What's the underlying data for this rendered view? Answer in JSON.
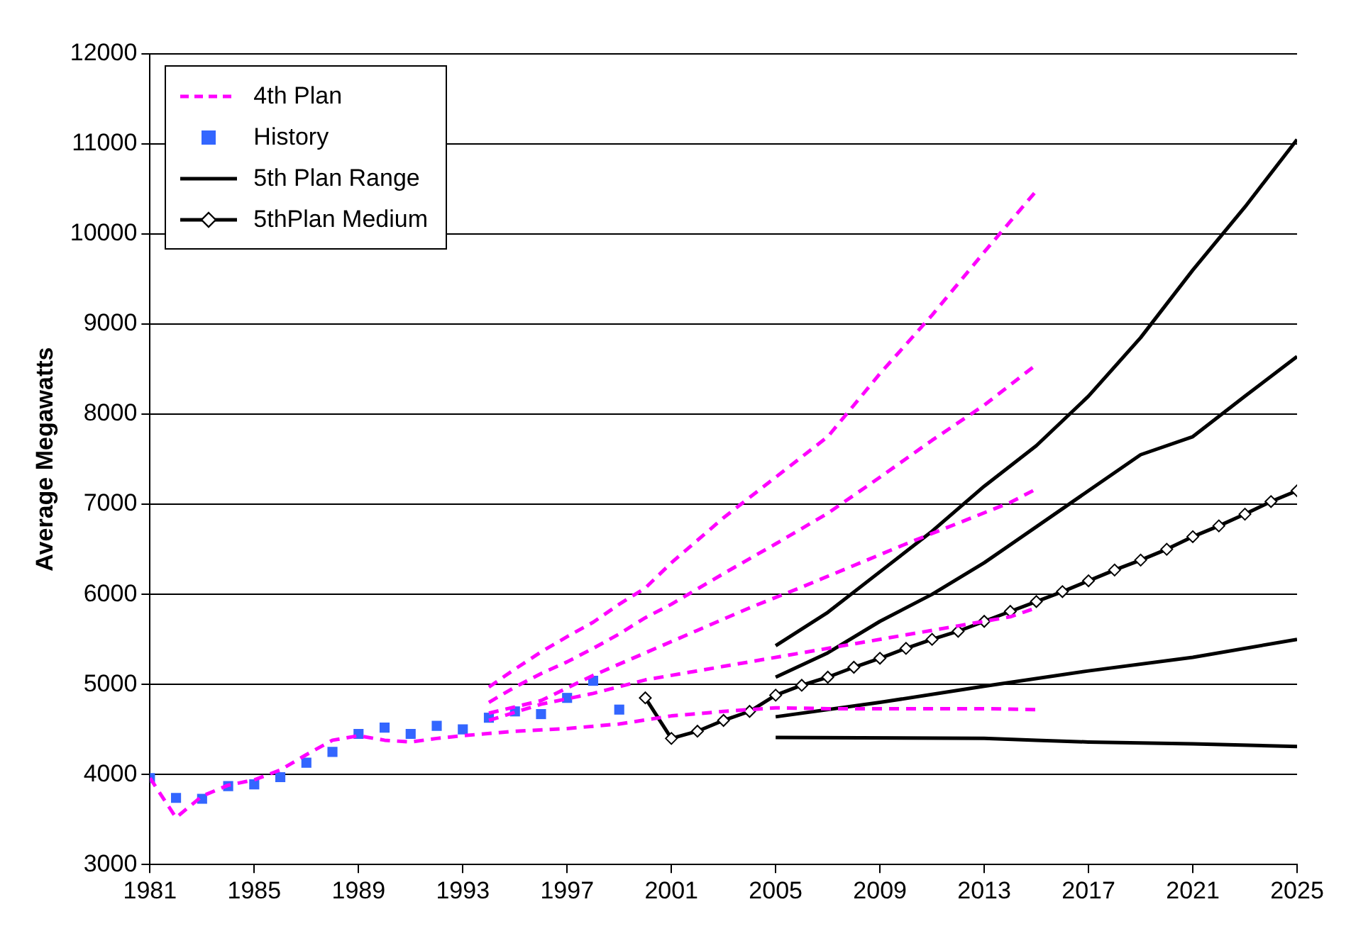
{
  "chart_data": {
    "type": "line",
    "ylabel": "Average Megawatts",
    "xlim": [
      1981,
      2025
    ],
    "xticks": [
      1981,
      1985,
      1989,
      1993,
      1997,
      2001,
      2005,
      2009,
      2013,
      2017,
      2021,
      2025
    ],
    "ylim": [
      3000,
      12000
    ],
    "yticks": [
      3000,
      4000,
      5000,
      6000,
      7000,
      8000,
      9000,
      10000,
      11000,
      12000
    ],
    "grid": "y",
    "legend": "top left",
    "series": [
      {
        "name": "4th Plan",
        "type": "line",
        "color": "#ff00ff",
        "line_style": "dashed",
        "marker": "none",
        "x": [
          1981,
          1982,
          1983,
          1984,
          1985,
          1986,
          1987,
          1988,
          1989,
          1990,
          1991,
          1992,
          1993,
          1995,
          1997,
          1999,
          2001,
          2003,
          2005,
          2007,
          2009,
          2011,
          2013,
          2015
        ],
        "values": [
          3960,
          3520,
          3760,
          3880,
          3940,
          4050,
          4220,
          4380,
          4430,
          4380,
          4360,
          4400,
          4430,
          4480,
          4510,
          4560,
          4650,
          4700,
          4740,
          4730,
          4730,
          4730,
          4730,
          4720
        ]
      },
      {
        "color": "#ff00ff",
        "line_style": "dashed",
        "marker": "none",
        "x": [
          1994,
          1996,
          1998,
          2000,
          2002,
          2004,
          2006,
          2008,
          2010,
          2012,
          2014,
          2015
        ],
        "values": [
          4600,
          4780,
          4900,
          5050,
          5150,
          5250,
          5350,
          5450,
          5550,
          5650,
          5750,
          5850
        ]
      },
      {
        "color": "#ff00ff",
        "line_style": "dashed",
        "marker": "none",
        "x": [
          1994,
          1996,
          1998,
          2000,
          2002,
          2004,
          2006,
          2008,
          2010,
          2012,
          2014,
          2015
        ],
        "values": [
          4680,
          4820,
          5100,
          5350,
          5600,
          5850,
          6080,
          6320,
          6560,
          6790,
          7020,
          7170
        ]
      },
      {
        "color": "#ff00ff",
        "line_style": "dashed",
        "marker": "none",
        "x": [
          1994,
          1995,
          1996,
          1997,
          1998,
          1999,
          2000,
          2001,
          2003,
          2005,
          2007,
          2009,
          2011,
          2013,
          2015
        ],
        "values": [
          4800,
          4970,
          5120,
          5250,
          5400,
          5560,
          5740,
          5890,
          6230,
          6560,
          6900,
          7300,
          7710,
          8100,
          8550
        ]
      },
      {
        "color": "#ff00ff",
        "line_style": "dashed",
        "marker": "none",
        "x": [
          1994,
          1995,
          1996,
          1997,
          1998,
          1999,
          2000,
          2001,
          2003,
          2005,
          2007,
          2009,
          2011,
          2013,
          2015
        ],
        "values": [
          4970,
          5170,
          5360,
          5530,
          5690,
          5890,
          6070,
          6350,
          6850,
          7300,
          7750,
          8450,
          9100,
          9800,
          10480
        ]
      },
      {
        "name": "History",
        "type": "scatter",
        "color": "#3366ff",
        "marker": "square",
        "x": [
          1981,
          1982,
          1983,
          1984,
          1985,
          1986,
          1987,
          1988,
          1989,
          1990,
          1991,
          1992,
          1993,
          1994,
          1995,
          1996,
          1997,
          1998,
          1999
        ],
        "values": [
          3960,
          3740,
          3730,
          3870,
          3890,
          3970,
          4130,
          4250,
          4450,
          4520,
          4450,
          4540,
          4500,
          4630,
          4700,
          4670,
          4850,
          5040,
          4720
        ]
      },
      {
        "name": "5th Plan Range",
        "type": "line",
        "color": "#000000",
        "line_style": "solid",
        "marker": "none",
        "x": [
          2005,
          2007,
          2009,
          2011,
          2013,
          2015,
          2017,
          2019,
          2021,
          2023,
          2025
        ],
        "values": [
          5430,
          5800,
          6250,
          6700,
          7200,
          7650,
          8200,
          8850,
          9600,
          10300,
          11050
        ]
      },
      {
        "type": "line",
        "color": "#000000",
        "line_style": "solid",
        "marker": "none",
        "x": [
          2005,
          2007,
          2009,
          2011,
          2013,
          2015,
          2017,
          2019,
          2021,
          2023,
          2025
        ],
        "values": [
          5080,
          5350,
          5700,
          6000,
          6350,
          6750,
          7150,
          7550,
          7750,
          8200,
          8640
        ]
      },
      {
        "type": "line",
        "color": "#000000",
        "line_style": "solid",
        "marker": "none",
        "x": [
          2005,
          2009,
          2013,
          2017,
          2021,
          2025
        ],
        "values": [
          4640,
          4800,
          4980,
          5150,
          5300,
          5500
        ]
      },
      {
        "type": "line",
        "color": "#000000",
        "line_style": "solid",
        "marker": "none",
        "x": [
          2005,
          2013,
          2015,
          2017,
          2021,
          2025
        ],
        "values": [
          4410,
          4400,
          4380,
          4360,
          4340,
          4310
        ]
      },
      {
        "name": "5thPlan Medium",
        "type": "line",
        "color": "#000000",
        "line_style": "solid",
        "marker": "diamond",
        "x": [
          2000,
          2001,
          2002,
          2003,
          2004,
          2005,
          2006,
          2007,
          2008,
          2009,
          2010,
          2011,
          2012,
          2013,
          2014,
          2015,
          2016,
          2017,
          2018,
          2019,
          2020,
          2021,
          2022,
          2023,
          2024,
          2025
        ],
        "values": [
          4850,
          4400,
          4480,
          4600,
          4700,
          4880,
          4990,
          5080,
          5190,
          5290,
          5400,
          5500,
          5590,
          5700,
          5810,
          5920,
          6030,
          6150,
          6270,
          6380,
          6500,
          6640,
          6760,
          6890,
          7030,
          7150
        ]
      }
    ]
  }
}
